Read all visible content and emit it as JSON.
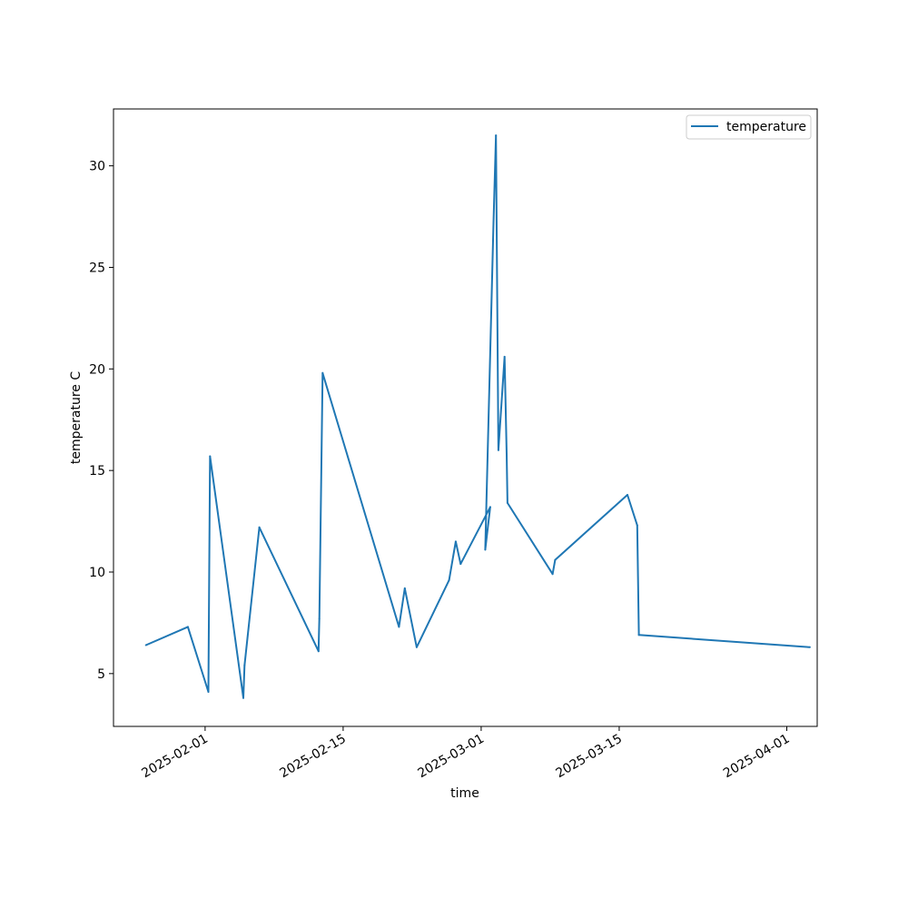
{
  "chart_data": {
    "type": "line",
    "title": "",
    "xlabel": "time",
    "ylabel": "temperature C",
    "x_scale": "date",
    "xlim": [
      "2025-01-22T17:00",
      "2025-04-04T02:00"
    ],
    "ylim": [
      2.4,
      32.8
    ],
    "x_ticks": [
      {
        "value": "2025-02-01",
        "label": "2025-02-01"
      },
      {
        "value": "2025-02-15",
        "label": "2025-02-15"
      },
      {
        "value": "2025-03-01",
        "label": "2025-03-01"
      },
      {
        "value": "2025-03-15",
        "label": "2025-03-15"
      },
      {
        "value": "2025-04-01",
        "label": "2025-04-01"
      }
    ],
    "y_ticks": [
      5,
      10,
      15,
      20,
      25,
      30
    ],
    "grid": false,
    "legend": {
      "position": "top-right",
      "entries": [
        "temperature"
      ]
    },
    "series": [
      {
        "name": "temperature",
        "color": "#1f77b4",
        "points": [
          {
            "x": "2025-01-26T00:00",
            "y": 6.4
          },
          {
            "x": "2025-01-30T06:00",
            "y": 7.3
          },
          {
            "x": "2025-02-01T08:00",
            "y": 4.1
          },
          {
            "x": "2025-02-01T12:00",
            "y": 15.7
          },
          {
            "x": "2025-02-04T21:00",
            "y": 3.8
          },
          {
            "x": "2025-02-05T00:00",
            "y": 5.4
          },
          {
            "x": "2025-02-06T12:00",
            "y": 12.2
          },
          {
            "x": "2025-02-12T12:00",
            "y": 6.1
          },
          {
            "x": "2025-02-12T14:00",
            "y": 7.7
          },
          {
            "x": "2025-02-12T22:00",
            "y": 19.8
          },
          {
            "x": "2025-02-20T16:00",
            "y": 7.3
          },
          {
            "x": "2025-02-21T06:00",
            "y": 9.2
          },
          {
            "x": "2025-02-22T11:00",
            "y": 6.3
          },
          {
            "x": "2025-02-25T18:00",
            "y": 9.6
          },
          {
            "x": "2025-02-26T10:00",
            "y": 11.5
          },
          {
            "x": "2025-02-26T22:00",
            "y": 10.4
          },
          {
            "x": "2025-02-29T22:00",
            "y": 13.2
          },
          {
            "x": "2025-03-01T10:00",
            "y": 11.1
          },
          {
            "x": "2025-03-02T06:00",
            "y": 27.2
          },
          {
            "x": "2025-03-02T12:00",
            "y": 31.5
          },
          {
            "x": "2025-03-02T18:00",
            "y": 16.0
          },
          {
            "x": "2025-03-03T09:00",
            "y": 20.6
          },
          {
            "x": "2025-03-03T14:00",
            "y": 15.8
          },
          {
            "x": "2025-03-03T16:00",
            "y": 13.4
          },
          {
            "x": "2025-03-08T06:00",
            "y": 9.9
          },
          {
            "x": "2025-03-08T12:00",
            "y": 10.6
          },
          {
            "x": "2025-03-15T20:00",
            "y": 13.8
          },
          {
            "x": "2025-03-16T20:00",
            "y": 12.3
          },
          {
            "x": "2025-03-17T00:00",
            "y": 6.9
          },
          {
            "x": "2025-04-03T08:00",
            "y": 6.3
          }
        ]
      }
    ]
  }
}
